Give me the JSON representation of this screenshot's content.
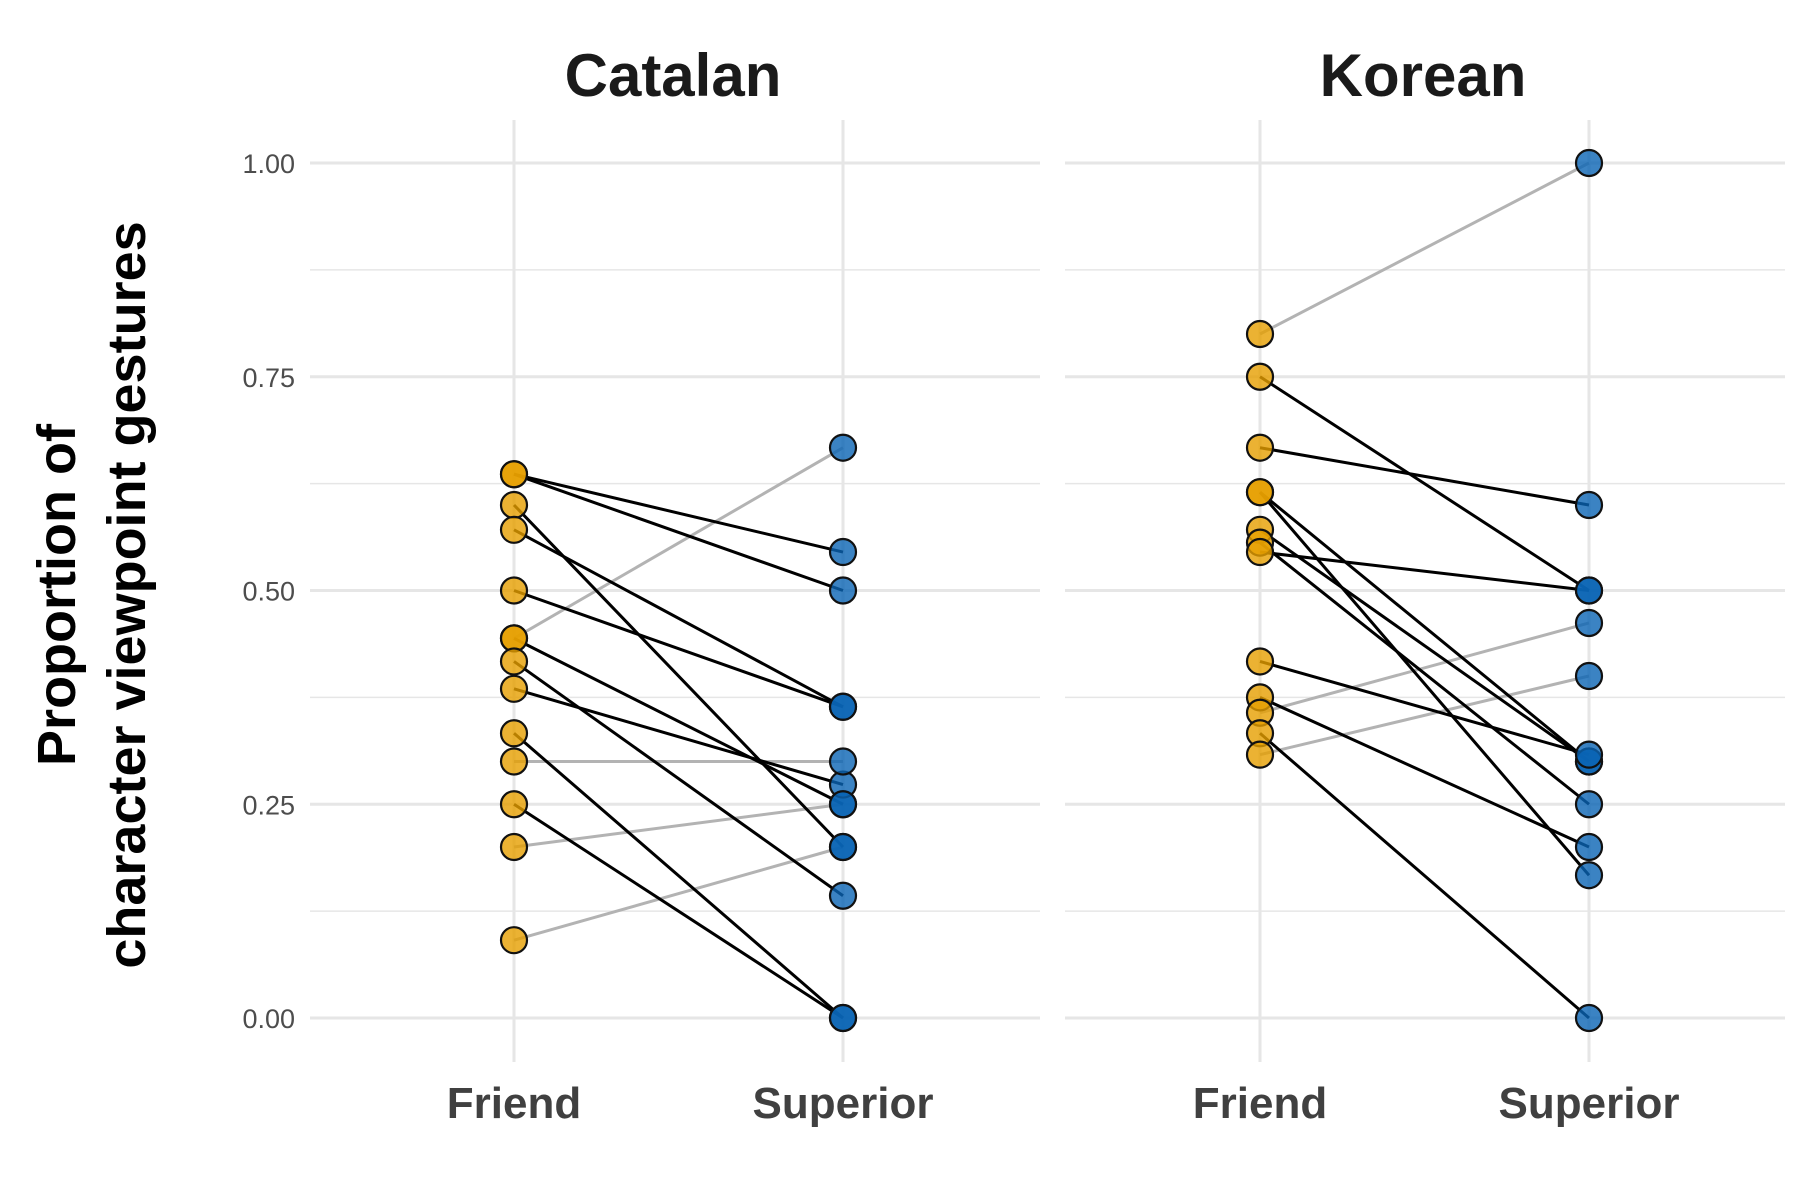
{
  "chart_data": {
    "type": "line",
    "facets": [
      "Catalan",
      "Korean"
    ],
    "ylabel_lines": [
      "Proportion of",
      "character viewpoint gestures"
    ],
    "xlabel": "",
    "categories": [
      "Friend",
      "Superior"
    ],
    "ylim": [
      0,
      1
    ],
    "yticks": [
      "0.00",
      "0.25",
      "0.50",
      "0.75",
      "1.00"
    ],
    "grid": true,
    "legend": "none",
    "colors": {
      "Friend": "#E69F00",
      "Superior": "#0A64B4",
      "decrease": "#000000",
      "increase_or_equal": "#b3b3b3",
      "grid": "#e6e6e6"
    },
    "panels": [
      {
        "name": "Catalan",
        "pairs": [
          {
            "friend": 0.636,
            "superior": 0.545
          },
          {
            "friend": 0.636,
            "superior": 0.5
          },
          {
            "friend": 0.6,
            "superior": 0.2
          },
          {
            "friend": 0.571,
            "superior": 0.364
          },
          {
            "friend": 0.5,
            "superior": 0.364
          },
          {
            "friend": 0.444,
            "superior": 0.667
          },
          {
            "friend": 0.444,
            "superior": 0.25
          },
          {
            "friend": 0.417,
            "superior": 0.143
          },
          {
            "friend": 0.385,
            "superior": 0.273
          },
          {
            "friend": 0.333,
            "superior": 0.0
          },
          {
            "friend": 0.3,
            "superior": 0.3
          },
          {
            "friend": 0.25,
            "superior": 0.0
          },
          {
            "friend": 0.2,
            "superior": 0.25
          },
          {
            "friend": 0.091,
            "superior": 0.2
          }
        ]
      },
      {
        "name": "Korean",
        "pairs": [
          {
            "friend": 0.8,
            "superior": 1.0
          },
          {
            "friend": 0.75,
            "superior": 0.5
          },
          {
            "friend": 0.667,
            "superior": 0.6
          },
          {
            "friend": 0.615,
            "superior": 0.167
          },
          {
            "friend": 0.615,
            "superior": 0.3
          },
          {
            "friend": 0.571,
            "superior": 0.3
          },
          {
            "friend": 0.556,
            "superior": 0.25
          },
          {
            "friend": 0.545,
            "superior": 0.5
          },
          {
            "friend": 0.417,
            "superior": 0.308
          },
          {
            "friend": 0.375,
            "superior": 0.2
          },
          {
            "friend": 0.357,
            "superior": 0.462
          },
          {
            "friend": 0.333,
            "superior": 0.0
          },
          {
            "friend": 0.308,
            "superior": 0.4
          }
        ]
      }
    ]
  }
}
